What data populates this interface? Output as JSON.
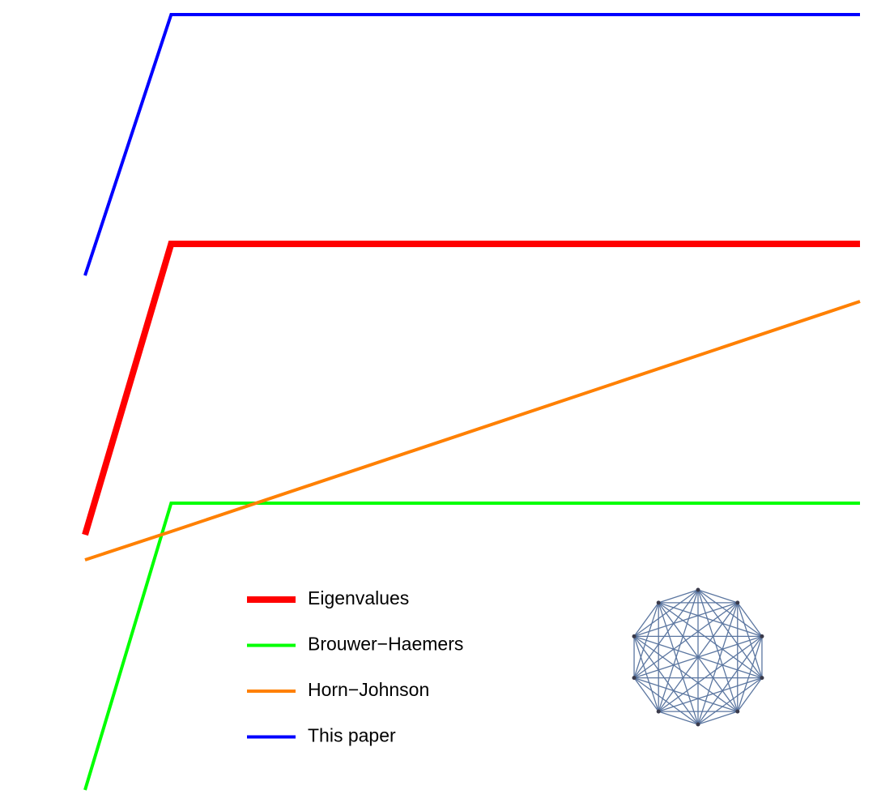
{
  "chart_data": {
    "type": "line",
    "x": [
      0,
      1,
      9
    ],
    "xlim": [
      0,
      9
    ],
    "ylim": [
      0,
      996
    ],
    "legend": "bottom",
    "series": [
      {
        "name": "Eigenvalues",
        "color": "#ff0000",
        "width": 8,
        "values": [
          336,
          695,
          695
        ]
      },
      {
        "name": "Brouwer−Haemers",
        "color": "#00ff00",
        "width": 4,
        "values": [
          21,
          375,
          375
        ]
      },
      {
        "name": "Horn−Johnson",
        "color": "#ff8000",
        "width": 4,
        "values": [
          305,
          340,
          624
        ]
      },
      {
        "name": "This paper",
        "color": "#0000ff",
        "width": 4,
        "values": [
          656,
          978,
          978
        ]
      }
    ]
  }
}
